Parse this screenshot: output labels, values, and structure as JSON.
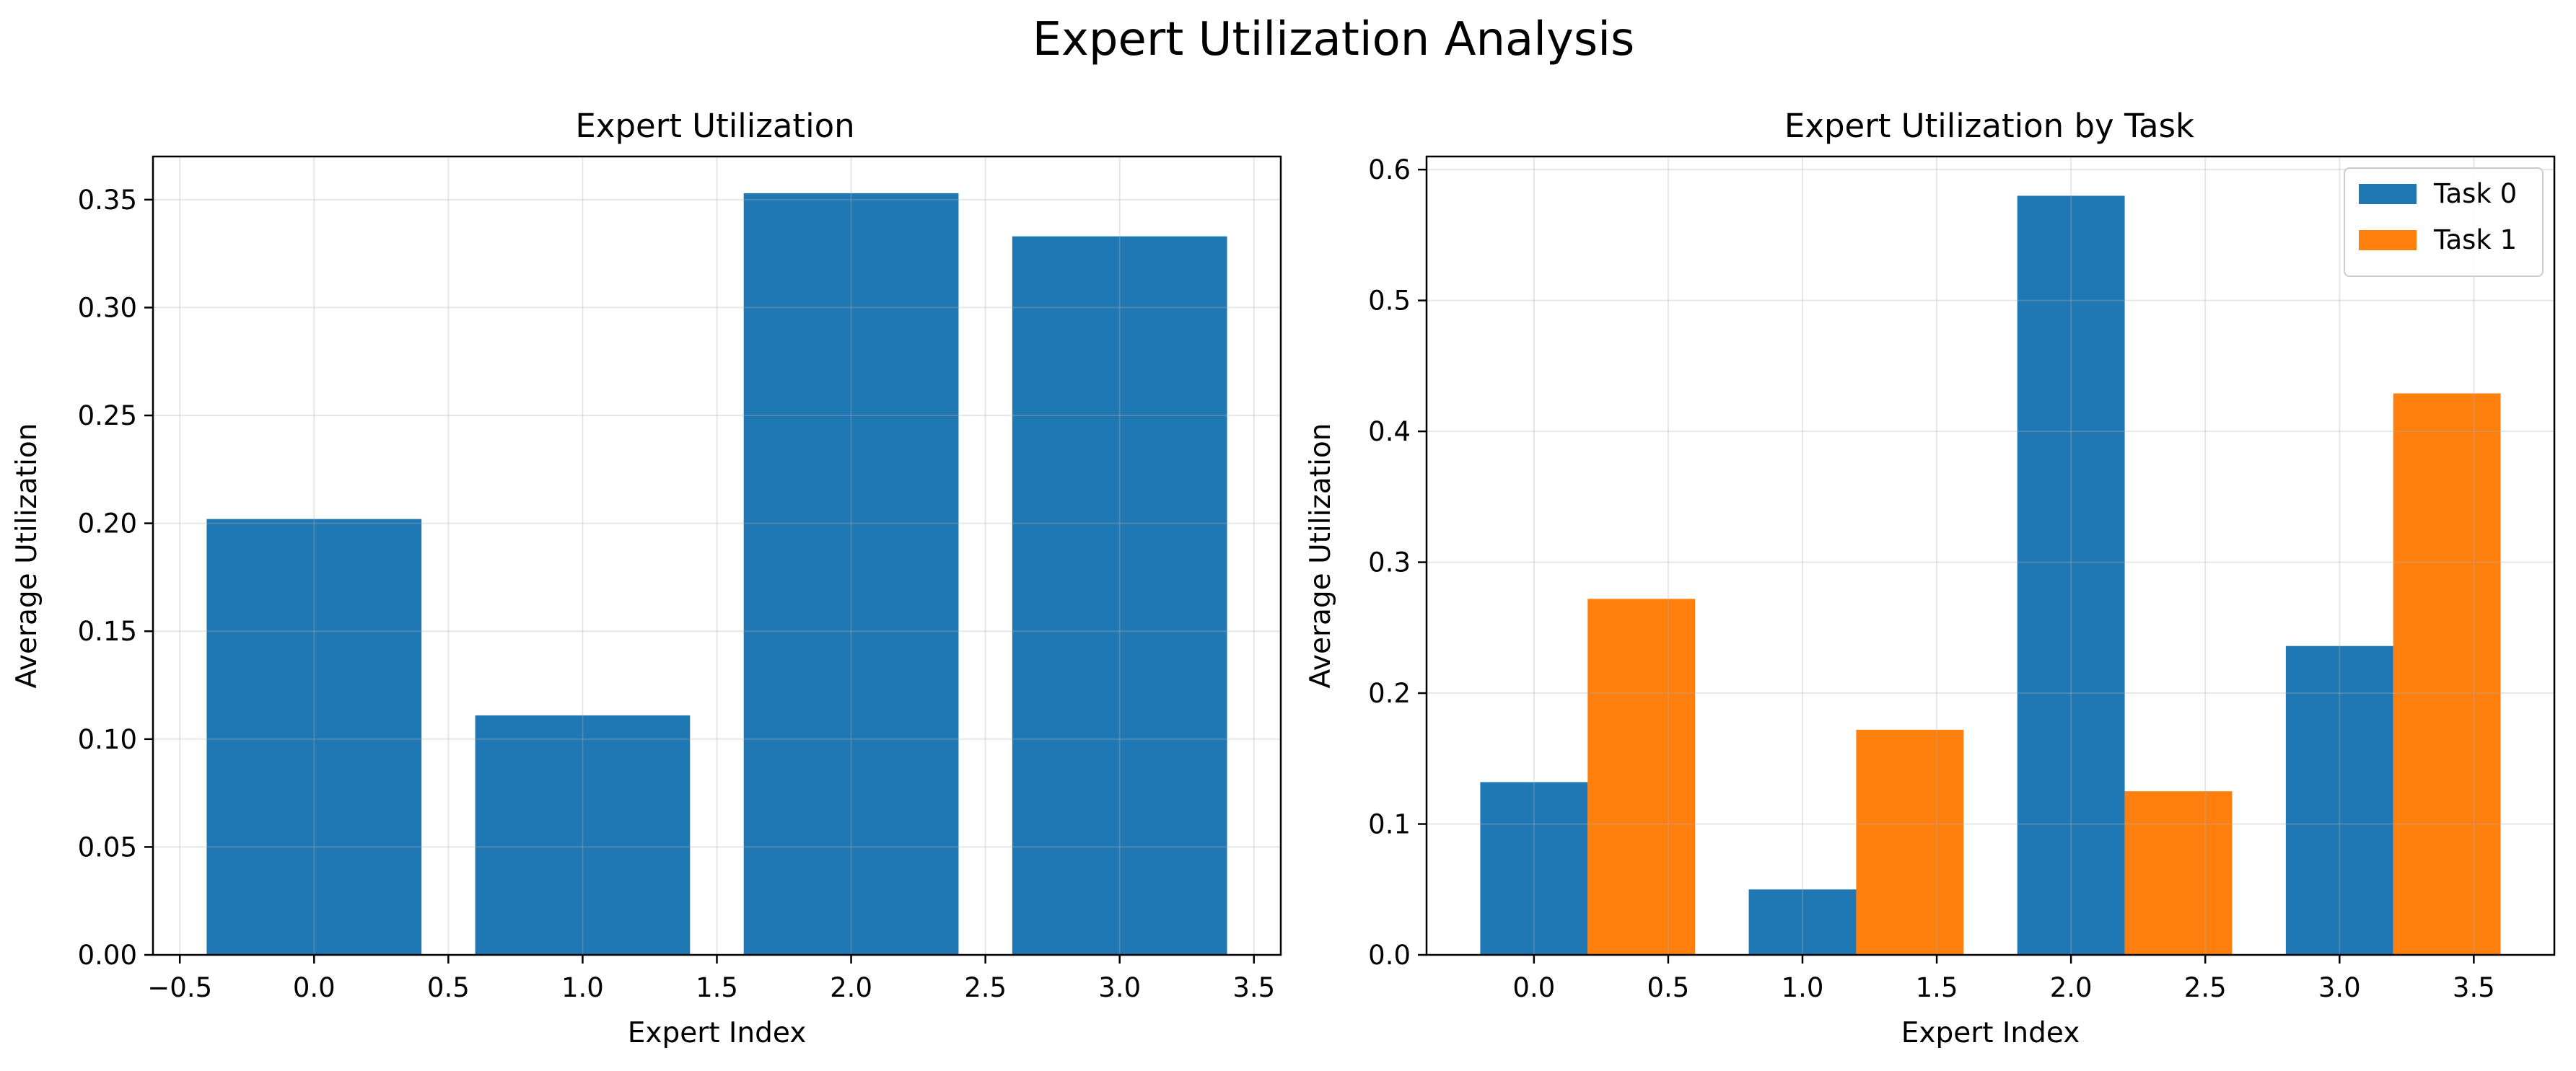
{
  "figure": {
    "title": "Expert Utilization Analysis"
  },
  "chart_data": [
    {
      "type": "bar",
      "title": "Expert Utilization",
      "xlabel": "Expert Index",
      "ylabel": "Average Utilization",
      "x": [
        0,
        1,
        2,
        3
      ],
      "bar_width": 0.8,
      "values": [
        0.202,
        0.111,
        0.353,
        0.333
      ],
      "xlim": [
        -0.6,
        3.6
      ],
      "ylim": [
        0,
        0.37
      ],
      "xticks": [
        -0.5,
        0.0,
        0.5,
        1.0,
        1.5,
        2.0,
        2.5,
        3.0,
        3.5
      ],
      "xtick_labels": [
        "−0.5",
        "0.0",
        "0.5",
        "1.0",
        "1.5",
        "2.0",
        "2.5",
        "3.0",
        "3.5"
      ],
      "yticks": [
        0,
        0.05,
        0.1,
        0.15,
        0.2,
        0.25,
        0.3,
        0.35
      ],
      "ytick_labels": [
        "0.00",
        "0.05",
        "0.10",
        "0.15",
        "0.20",
        "0.25",
        "0.30",
        "0.35"
      ],
      "grid": true,
      "colors": [
        "#1f77b4"
      ]
    },
    {
      "type": "bar",
      "title": "Expert Utilization by Task",
      "xlabel": "Expert Index",
      "ylabel": "Average Utilization",
      "x": [
        0,
        1,
        2,
        3
      ],
      "bar_width": 0.4,
      "series": [
        {
          "name": "Task 0",
          "offset": 0.0,
          "values": [
            0.132,
            0.05,
            0.58,
            0.236
          ],
          "color": "#1f77b4"
        },
        {
          "name": "Task 1",
          "offset": 0.4,
          "values": [
            0.272,
            0.172,
            0.125,
            0.429
          ],
          "color": "#ff7f0e"
        }
      ],
      "xlim": [
        -0.4,
        3.8
      ],
      "ylim": [
        0,
        0.61
      ],
      "xticks": [
        0.0,
        0.5,
        1.0,
        1.5,
        2.0,
        2.5,
        3.0,
        3.5
      ],
      "xtick_labels": [
        "0.0",
        "0.5",
        "1.0",
        "1.5",
        "2.0",
        "2.5",
        "3.0",
        "3.5"
      ],
      "yticks": [
        0,
        0.1,
        0.2,
        0.3,
        0.4,
        0.5,
        0.6
      ],
      "ytick_labels": [
        "0.0",
        "0.1",
        "0.2",
        "0.3",
        "0.4",
        "0.5",
        "0.6"
      ],
      "grid": true,
      "legend": "top-right"
    }
  ]
}
